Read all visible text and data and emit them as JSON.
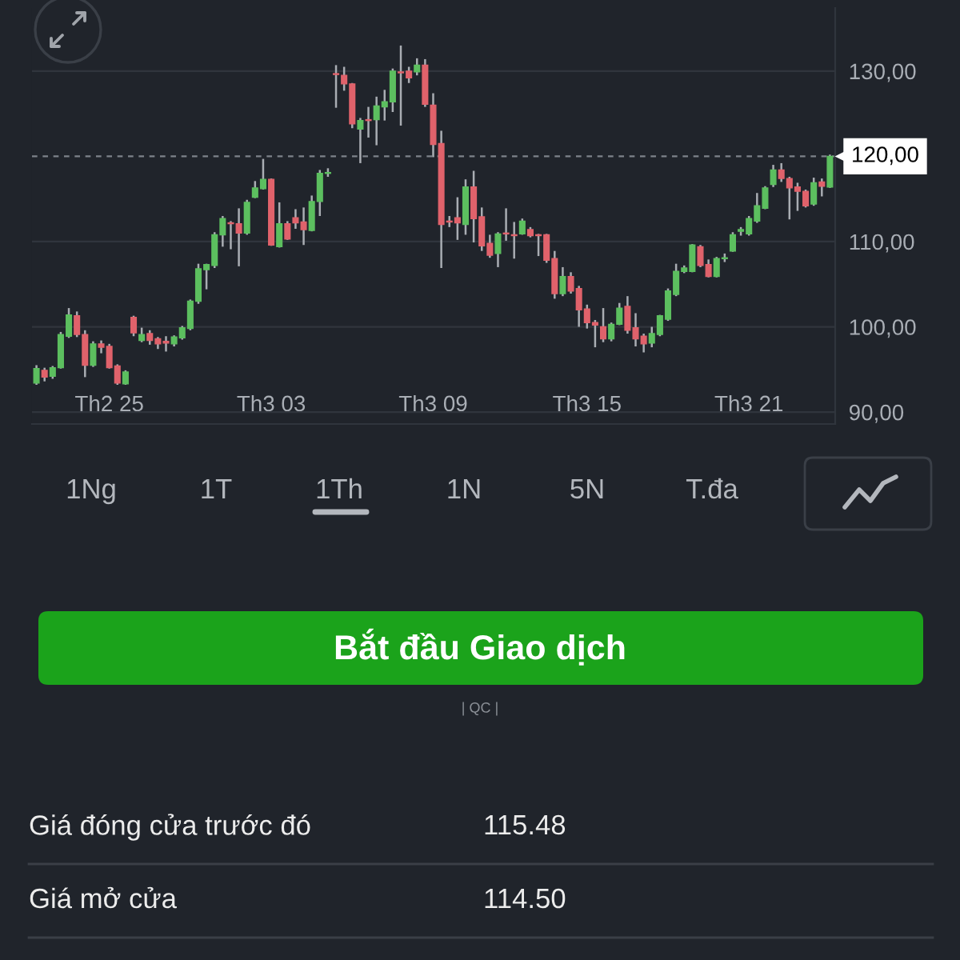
{
  "chart_data": [
    {
      "type": "candlestick",
      "categories": [
        null,
        null,
        null,
        null,
        null,
        null,
        null,
        null,
        null,
        "Th2 25",
        null,
        null,
        null,
        null,
        null,
        null,
        null,
        null,
        null,
        null,
        null,
        null,
        null,
        null,
        null,
        null,
        null,
        null,
        null,
        "Th3 03",
        null,
        null,
        null,
        null,
        null,
        null,
        null,
        null,
        null,
        null,
        null,
        null,
        null,
        null,
        null,
        null,
        null,
        null,
        null,
        "Th3 09",
        null,
        null,
        null,
        null,
        null,
        null,
        null,
        null,
        null,
        null,
        null,
        null,
        null,
        null,
        null,
        null,
        null,
        null,
        "Th3 15",
        null,
        null,
        null,
        null,
        null,
        null,
        null,
        null,
        null,
        null,
        null,
        null,
        null,
        null,
        null,
        null,
        null,
        null,
        null,
        "Th3 21",
        null,
        null,
        null,
        null,
        null,
        null,
        null,
        null,
        null,
        null
      ],
      "ohlc": [
        [
          93.4,
          95.5,
          93.2,
          95.1
        ],
        [
          94.9,
          95.2,
          93.6,
          94.1
        ],
        [
          94.2,
          95.4,
          93.9,
          95.2
        ],
        [
          95.2,
          99.4,
          95.1,
          99.1
        ],
        [
          98.9,
          102.2,
          98.7,
          101.4
        ],
        [
          101.3,
          101.8,
          98.8,
          99.1
        ],
        [
          99.1,
          99.6,
          94.1,
          95.5
        ],
        [
          95.5,
          98.3,
          95.3,
          98.0
        ],
        [
          98.0,
          98.4,
          96.9,
          97.6
        ],
        [
          97.7,
          98.0,
          95.1,
          95.2
        ],
        [
          95.4,
          95.6,
          93.2,
          93.4
        ],
        [
          93.3,
          94.9,
          93.2,
          94.7
        ],
        [
          101.1,
          101.3,
          98.9,
          99.3
        ],
        [
          98.4,
          99.9,
          98.2,
          99.1
        ],
        [
          99.2,
          99.6,
          97.9,
          98.4
        ],
        [
          98.6,
          98.8,
          97.4,
          98.0
        ],
        [
          98.3,
          98.9,
          97.1,
          98.1
        ],
        [
          98.0,
          99.0,
          97.7,
          98.8
        ],
        [
          98.7,
          100.1,
          98.5,
          99.9
        ],
        [
          99.8,
          103.2,
          99.6,
          103.0
        ],
        [
          103.0,
          107.4,
          102.7,
          106.8
        ],
        [
          106.7,
          107.4,
          104.4,
          107.3
        ],
        [
          107.2,
          111.1,
          106.9,
          110.8
        ],
        [
          110.8,
          113.0,
          109.4,
          112.7
        ],
        [
          112.2,
          112.4,
          109.1,
          112.1
        ],
        [
          112.1,
          113.9,
          107.1,
          111.0
        ],
        [
          111.0,
          114.9,
          110.8,
          114.6
        ],
        [
          115.2,
          117.1,
          115.1,
          116.3
        ],
        [
          116.2,
          119.7,
          116.1,
          117.3
        ],
        [
          117.3,
          117.4,
          109.5,
          109.6
        ],
        [
          109.4,
          114.6,
          109.3,
          112.1
        ],
        [
          112.1,
          112.4,
          110.2,
          110.3
        ],
        [
          112.8,
          113.8,
          111.5,
          112.2
        ],
        [
          112.3,
          114.0,
          109.6,
          111.4
        ],
        [
          111.3,
          115.4,
          111.2,
          114.7
        ],
        [
          114.7,
          118.4,
          113.0,
          118.0
        ],
        [
          118.0,
          118.6,
          117.6,
          118.1
        ],
        [
          129.7,
          130.7,
          125.7,
          129.6
        ],
        [
          129.5,
          130.5,
          127.7,
          128.5
        ],
        [
          128.5,
          128.6,
          123.3,
          123.8
        ],
        [
          123.2,
          124.5,
          119.2,
          124.2
        ],
        [
          124.3,
          125.8,
          122.2,
          124.2
        ],
        [
          124.3,
          127.0,
          121.3,
          125.9
        ],
        [
          125.8,
          127.8,
          124.2,
          126.4
        ],
        [
          126.4,
          130.3,
          125.2,
          130.0
        ],
        [
          129.9,
          133.0,
          123.6,
          129.8
        ],
        [
          130.0,
          130.5,
          128.6,
          129.2
        ],
        [
          129.9,
          131.5,
          129.5,
          130.7
        ],
        [
          130.7,
          131.4,
          125.8,
          126.1
        ],
        [
          126.0,
          127.4,
          119.9,
          121.4
        ],
        [
          121.5,
          123.0,
          106.9,
          112.0
        ],
        [
          112.4,
          113.0,
          111.7,
          112.3
        ],
        [
          112.8,
          115.2,
          110.2,
          112.2
        ],
        [
          112.0,
          117.3,
          110.8,
          116.4
        ],
        [
          116.4,
          118.3,
          109.9,
          112.7
        ],
        [
          112.9,
          114.0,
          108.9,
          109.5
        ],
        [
          109.8,
          110.8,
          108.1,
          108.4
        ],
        [
          108.6,
          111.1,
          107.0,
          110.9
        ],
        [
          111.0,
          113.9,
          110.1,
          110.9
        ],
        [
          110.8,
          112.3,
          108.0,
          110.7
        ],
        [
          110.9,
          112.7,
          110.8,
          112.4
        ],
        [
          111.4,
          111.7,
          110.5,
          110.7
        ],
        [
          110.8,
          110.9,
          108.3,
          110.7
        ],
        [
          110.8,
          110.9,
          107.5,
          107.8
        ],
        [
          108.0,
          108.9,
          103.3,
          103.9
        ],
        [
          103.9,
          107.0,
          103.6,
          105.9
        ],
        [
          105.9,
          106.4,
          103.9,
          104.2
        ],
        [
          104.5,
          104.8,
          100.0,
          102.0
        ],
        [
          102.1,
          102.6,
          99.8,
          100.5
        ],
        [
          100.5,
          100.8,
          97.6,
          100.2
        ],
        [
          100.0,
          102.2,
          98.2,
          98.6
        ],
        [
          98.6,
          100.5,
          98.3,
          100.3
        ],
        [
          100.3,
          102.8,
          100.2,
          102.2
        ],
        [
          102.4,
          103.6,
          99.2,
          99.6
        ],
        [
          99.9,
          101.6,
          97.7,
          98.6
        ],
        [
          98.9,
          99.2,
          97.0,
          98.0
        ],
        [
          98.1,
          100.0,
          97.6,
          99.2
        ],
        [
          99.1,
          101.4,
          98.9,
          101.3
        ],
        [
          100.9,
          104.5,
          100.7,
          104.2
        ],
        [
          103.8,
          107.4,
          103.6,
          106.5
        ],
        [
          106.5,
          107.2,
          106.3,
          106.9
        ],
        [
          106.5,
          109.7,
          106.4,
          109.6
        ],
        [
          109.4,
          109.6,
          107.0,
          107.2
        ],
        [
          107.3,
          107.9,
          105.8,
          105.9
        ],
        [
          105.9,
          108.2,
          105.8,
          108.0
        ],
        [
          108.0,
          108.6,
          107.6,
          108.1
        ],
        [
          108.9,
          111.1,
          108.8,
          110.8
        ],
        [
          111.2,
          111.7,
          110.7,
          111.4
        ],
        [
          110.9,
          113.0,
          110.7,
          112.7
        ],
        [
          112.4,
          115.7,
          112.2,
          114.2
        ],
        [
          113.9,
          116.5,
          113.8,
          116.3
        ],
        [
          116.7,
          119.0,
          116.4,
          118.4
        ],
        [
          118.4,
          119.2,
          117.0,
          117.4
        ],
        [
          117.4,
          117.6,
          112.6,
          116.3
        ],
        [
          116.4,
          116.9,
          113.6,
          115.9
        ],
        [
          115.9,
          116.1,
          114.0,
          114.2
        ],
        [
          114.4,
          117.5,
          114.2,
          116.9
        ],
        [
          117.0,
          117.4,
          115.3,
          116.5
        ],
        [
          116.4,
          120.2,
          116.3,
          120.0
        ]
      ],
      "colors": [
        "#5cbf5f",
        "#e0626b",
        "#5cbf5f",
        "#5cbf5f",
        "#5cbf5f",
        "#e0626b",
        "#e0626b",
        "#5cbf5f",
        "#e0626b",
        "#e0626b",
        "#e0626b",
        "#5cbf5f",
        "#e0626b",
        "#5cbf5f",
        "#e0626b",
        "#e0626b",
        "#e0626b",
        "#5cbf5f",
        "#5cbf5f",
        "#5cbf5f",
        "#5cbf5f",
        "#5cbf5f",
        "#5cbf5f",
        "#5cbf5f",
        "#e0626b",
        "#e0626b",
        "#5cbf5f",
        "#5cbf5f",
        "#5cbf5f",
        "#e0626b",
        "#5cbf5f",
        "#e0626b",
        "#e0626b",
        "#e0626b",
        "#5cbf5f",
        "#5cbf5f",
        "#5cbf5f",
        "#e0626b",
        "#e0626b",
        "#e0626b",
        "#5cbf5f",
        "#e0626b",
        "#5cbf5f",
        "#5cbf5f",
        "#5cbf5f",
        "#e0626b",
        "#e0626b",
        "#5cbf5f",
        "#e0626b",
        "#e0626b",
        "#e0626b",
        "#e0626b",
        "#e0626b",
        "#5cbf5f",
        "#e0626b",
        "#e0626b",
        "#e0626b",
        "#5cbf5f",
        "#e0626b",
        "#e0626b",
        "#5cbf5f",
        "#e0626b",
        "#e0626b",
        "#e0626b",
        "#e0626b",
        "#5cbf5f",
        "#e0626b",
        "#e0626b",
        "#e0626b",
        "#e0626b",
        "#e0626b",
        "#5cbf5f",
        "#5cbf5f",
        "#e0626b",
        "#e0626b",
        "#e0626b",
        "#5cbf5f",
        "#5cbf5f",
        "#5cbf5f",
        "#5cbf5f",
        "#5cbf5f",
        "#5cbf5f",
        "#e0626b",
        "#e0626b",
        "#5cbf5f",
        "#5cbf5f",
        "#5cbf5f",
        "#5cbf5f",
        "#5cbf5f",
        "#5cbf5f",
        "#5cbf5f",
        "#5cbf5f",
        "#e0626b",
        "#e0626b",
        "#e0626b",
        "#e0626b",
        "#5cbf5f",
        "#e0626b",
        "#5cbf5f"
      ],
      "ylim": [
        88.6,
        137.4
      ],
      "yticks": [
        {
          "value": 90,
          "label": "90,00"
        },
        {
          "value": 100,
          "label": "100,00"
        },
        {
          "value": 110,
          "label": "110,00"
        },
        {
          "value": 130,
          "label": "130,00"
        }
      ],
      "ref_lines": [
        {
          "axis": "y",
          "value": 120,
          "label": "120,00",
          "color": "#7d828a",
          "line_style": "dashed"
        }
      ],
      "grid": "y"
    },
    {
      "type": "other",
      "annotations": [
        "1Ng",
        "1T",
        "1Th",
        "1N",
        "5N",
        "T.đa",
        "Bắt đầu Giao dịch",
        "| QC |",
        "Giá đóng cửa trước đó",
        "115.48",
        "Giá mở cửa",
        "114.50"
      ]
    }
  ]
}
